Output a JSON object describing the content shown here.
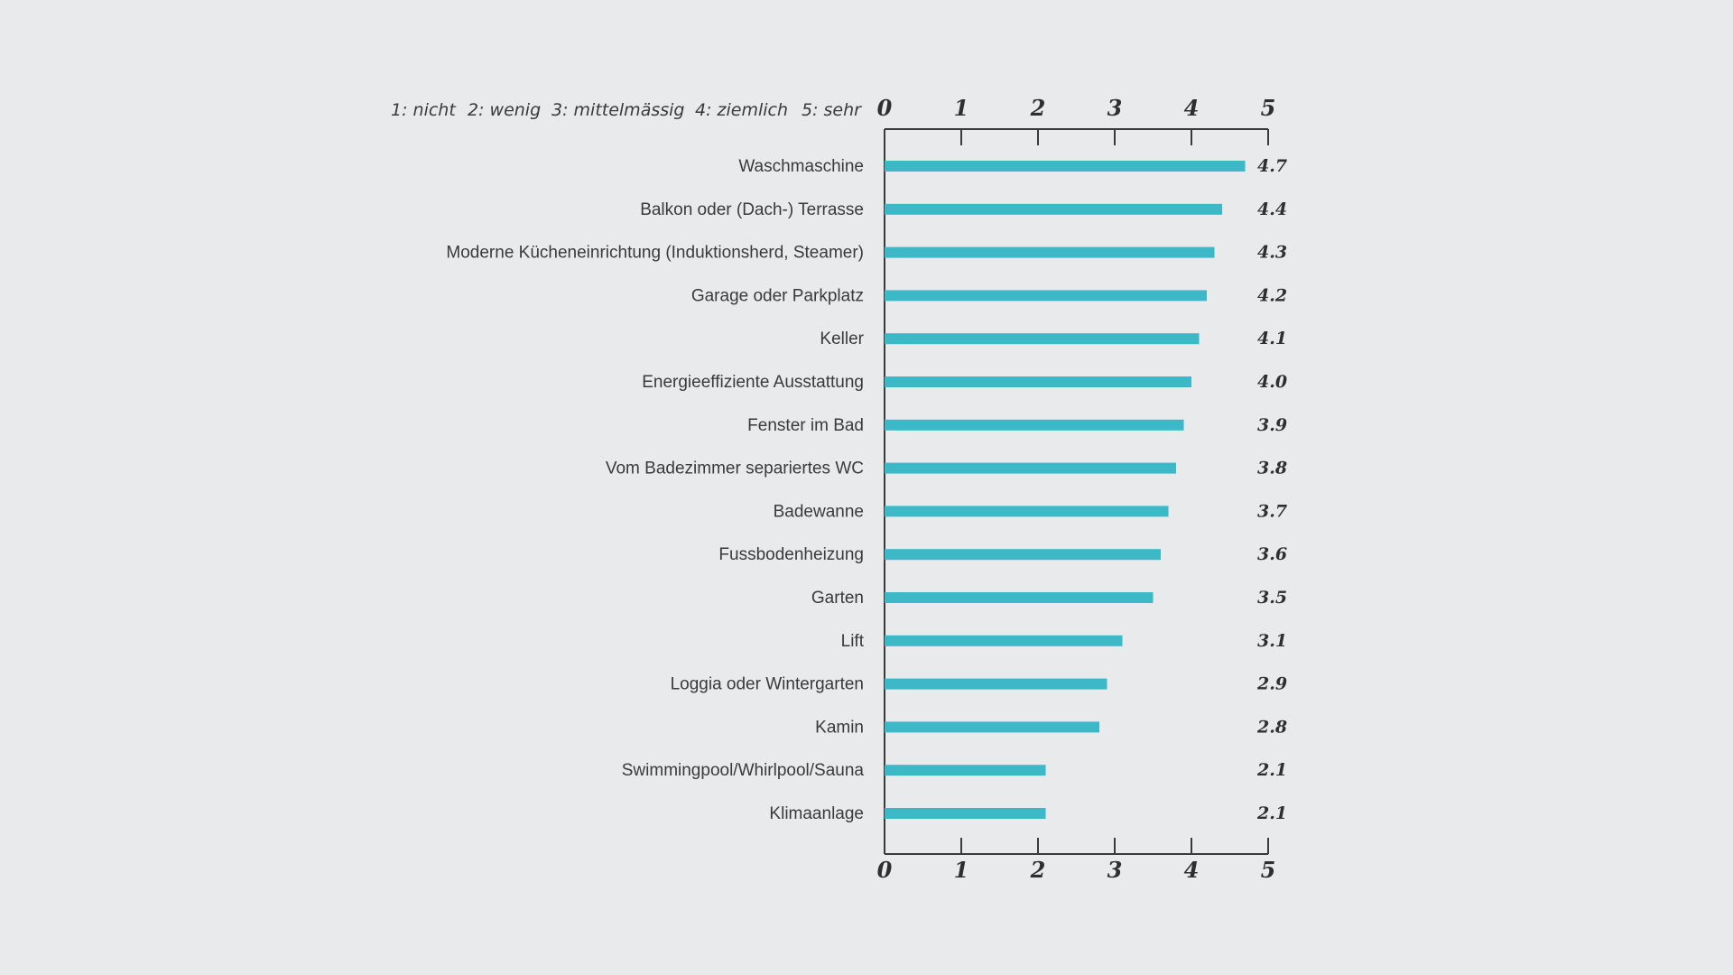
{
  "scale_legend": [
    "1: nicht",
    "2: wenig",
    "3: mittelmässig",
    "4: ziemlich",
    "5: sehr"
  ],
  "chart_data": {
    "type": "bar",
    "orientation": "horizontal",
    "categories": [
      "Waschmaschine",
      "Balkon oder (Dach-) Terrasse",
      "Moderne Kücheneinrichtung (Induktionsherd, Steamer)",
      "Garage oder Parkplatz",
      "Keller",
      "Energieeffiziente Ausstattung",
      "Fenster im Bad",
      "Vom Badezimmer separiertes WC",
      "Badewanne",
      "Fussbodenheizung",
      "Garten",
      "Lift",
      "Loggia oder Wintergarten",
      "Kamin",
      "Swimmingpool/Whirlpool/Sauna",
      "Klimaanlage"
    ],
    "values": [
      4.7,
      4.4,
      4.3,
      4.2,
      4.1,
      4.0,
      3.9,
      3.8,
      3.7,
      3.6,
      3.5,
      3.1,
      2.9,
      2.8,
      2.1,
      2.1
    ],
    "value_labels": [
      "4.7",
      "4.4",
      "4.3",
      "4.2",
      "4.1",
      "4.0",
      "3.9",
      "3.8",
      "3.7",
      "3.6",
      "3.5",
      "3.1",
      "2.9",
      "2.8",
      "2.1",
      "2.1"
    ],
    "xticks": [
      "0",
      "1",
      "2",
      "3",
      "4",
      "5"
    ],
    "xlim": [
      0,
      5
    ],
    "bar_color": "#3db8c7",
    "title": "",
    "xlabel": "",
    "ylabel": "",
    "grid": false,
    "axes": "top-and-bottom"
  }
}
